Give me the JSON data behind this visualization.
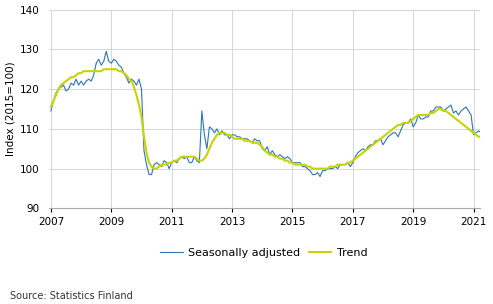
{
  "title": "",
  "ylabel": "Index (2015=100)",
  "source": "Source: Statistics Finland",
  "legend_labels": [
    "Seasonally adjusted",
    "Trend"
  ],
  "sa_color": "#2E75B6",
  "trend_color": "#C8D400",
  "background_color": "#ffffff",
  "ylim": [
    90,
    140
  ],
  "yticks": [
    90,
    100,
    110,
    120,
    130,
    140
  ],
  "xticks": [
    2007,
    2009,
    2011,
    2013,
    2015,
    2017,
    2019,
    2021
  ],
  "xlim": [
    2006.92,
    2021.2
  ],
  "sa_linewidth": 0.8,
  "trend_linewidth": 1.5,
  "seasonally_adjusted": [
    114.5,
    117.0,
    119.0,
    120.0,
    120.5,
    121.0,
    119.5,
    120.0,
    121.5,
    121.0,
    122.5,
    121.0,
    122.0,
    121.0,
    122.0,
    122.5,
    122.0,
    123.5,
    126.5,
    127.5,
    126.0,
    127.0,
    129.5,
    127.0,
    126.5,
    127.5,
    127.0,
    126.0,
    125.5,
    124.0,
    123.0,
    121.5,
    122.5,
    122.0,
    121.0,
    122.5,
    120.0,
    104.5,
    101.0,
    98.5,
    98.5,
    101.0,
    101.5,
    101.0,
    100.5,
    102.0,
    101.5,
    100.0,
    101.5,
    102.0,
    101.5,
    102.5,
    103.0,
    102.5,
    103.0,
    101.5,
    101.5,
    103.0,
    102.0,
    101.5,
    114.5,
    108.5,
    105.0,
    110.5,
    110.0,
    109.0,
    110.0,
    108.5,
    109.5,
    108.5,
    108.5,
    107.5,
    108.5,
    108.5,
    108.0,
    108.0,
    107.5,
    107.5,
    107.5,
    107.0,
    106.5,
    107.5,
    107.0,
    107.0,
    105.0,
    104.5,
    105.5,
    103.5,
    104.5,
    103.5,
    103.0,
    103.5,
    103.0,
    102.5,
    103.0,
    102.5,
    101.5,
    101.5,
    101.5,
    101.5,
    100.5,
    100.5,
    100.0,
    99.5,
    98.5,
    98.5,
    99.0,
    98.0,
    99.5,
    99.5,
    100.0,
    100.0,
    100.0,
    100.5,
    100.0,
    101.0,
    101.0,
    101.0,
    101.5,
    100.5,
    101.5,
    103.0,
    104.0,
    104.5,
    105.0,
    104.5,
    105.5,
    106.0,
    106.0,
    107.0,
    107.0,
    107.5,
    106.0,
    107.0,
    108.0,
    108.5,
    109.0,
    109.0,
    108.0,
    109.5,
    111.0,
    111.5,
    111.5,
    112.5,
    110.5,
    111.5,
    113.5,
    112.5,
    112.5,
    113.0,
    113.0,
    114.5,
    114.5,
    115.5,
    115.5,
    115.5,
    114.5,
    115.0,
    115.5,
    116.0,
    114.0,
    114.5,
    113.5,
    114.5,
    115.0,
    115.5,
    114.5,
    113.5,
    108.5,
    109.0,
    109.5,
    109.0,
    109.0,
    108.5
  ],
  "trend": [
    115.5,
    117.0,
    118.5,
    120.0,
    121.0,
    121.5,
    122.0,
    122.5,
    123.0,
    123.0,
    123.5,
    124.0,
    124.0,
    124.5,
    124.5,
    124.5,
    124.5,
    124.5,
    124.5,
    124.5,
    124.5,
    125.0,
    125.0,
    125.0,
    125.0,
    125.0,
    125.0,
    124.5,
    124.5,
    124.0,
    123.5,
    122.5,
    122.0,
    120.5,
    118.5,
    116.0,
    113.0,
    108.0,
    104.0,
    101.5,
    100.5,
    100.0,
    100.0,
    100.5,
    101.0,
    101.0,
    101.0,
    101.5,
    101.5,
    102.0,
    102.0,
    102.5,
    103.0,
    103.0,
    103.0,
    103.0,
    103.0,
    103.0,
    102.5,
    102.0,
    102.0,
    102.5,
    103.5,
    105.0,
    106.5,
    107.5,
    108.5,
    109.0,
    109.0,
    109.0,
    108.5,
    108.5,
    108.0,
    107.5,
    107.5,
    107.5,
    107.5,
    107.0,
    107.0,
    107.0,
    106.5,
    106.5,
    106.5,
    106.0,
    105.5,
    104.5,
    104.0,
    103.5,
    103.5,
    103.0,
    103.0,
    102.5,
    102.5,
    102.0,
    102.0,
    101.5,
    101.5,
    101.0,
    101.0,
    101.0,
    101.0,
    101.0,
    100.5,
    100.5,
    100.0,
    100.0,
    100.0,
    100.0,
    100.0,
    100.0,
    100.0,
    100.5,
    100.5,
    100.5,
    101.0,
    101.0,
    101.0,
    101.0,
    101.5,
    101.5,
    102.0,
    102.5,
    103.0,
    103.5,
    104.0,
    104.5,
    105.0,
    105.5,
    106.0,
    106.5,
    107.0,
    107.5,
    108.0,
    108.5,
    109.0,
    109.5,
    110.0,
    110.5,
    111.0,
    111.0,
    111.5,
    111.5,
    111.5,
    112.0,
    112.5,
    113.0,
    113.5,
    113.5,
    113.5,
    113.5,
    113.5,
    114.0,
    114.0,
    114.5,
    115.0,
    115.0,
    114.5,
    114.5,
    114.0,
    113.5,
    113.0,
    112.5,
    112.0,
    111.5,
    111.0,
    110.5,
    110.0,
    109.5,
    109.0,
    108.5,
    108.0,
    108.0,
    108.0,
    108.0
  ]
}
